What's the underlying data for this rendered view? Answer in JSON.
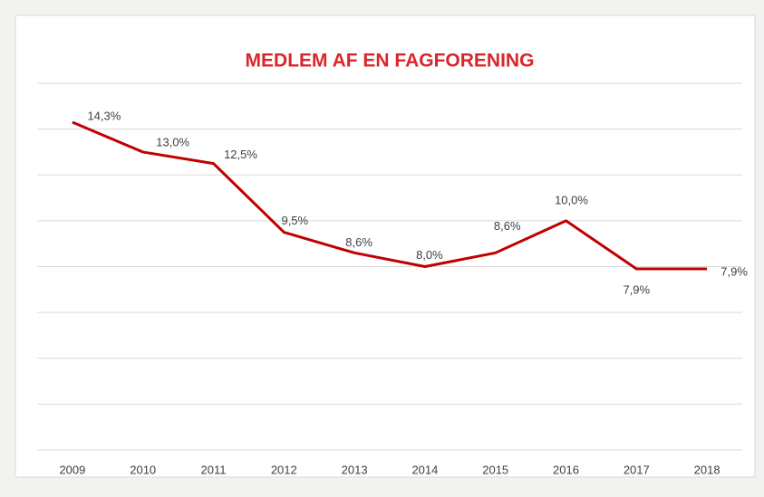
{
  "chart_data": {
    "type": "line",
    "title": "MEDLEM AF EN FAGFORENING",
    "categories": [
      "2009",
      "2010",
      "2011",
      "2012",
      "2013",
      "2014",
      "2015",
      "2016",
      "2017",
      "2018"
    ],
    "series": [
      {
        "color": "#c00000",
        "values": [
          14.3,
          13.0,
          12.5,
          9.5,
          8.6,
          8.0,
          8.6,
          10.0,
          7.9,
          7.9
        ],
        "value_labels": [
          "14,3%",
          "13,0%",
          "12,5%",
          "9,5%",
          "8,6%",
          "8,0%",
          "8,6%",
          "10,0%",
          "7,9%",
          "7,9%"
        ]
      }
    ],
    "ylim": [
      0,
      16
    ],
    "yticks": [
      0,
      2,
      4,
      6,
      8,
      10,
      12,
      14,
      16
    ],
    "grid": true,
    "ytick_labels": false
  }
}
